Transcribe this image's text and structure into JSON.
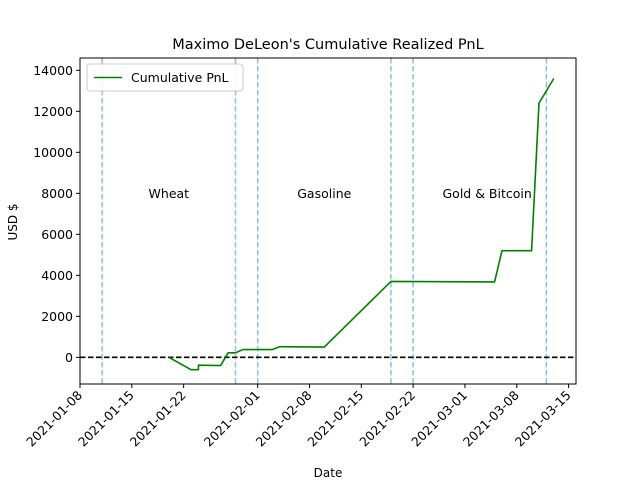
{
  "chart_data": {
    "type": "line",
    "title": "Maximo DeLeon's Cumulative Realized PnL",
    "xlabel": "Date",
    "ylabel": "USD $",
    "xlim": [
      "2021-01-08",
      "2021-03-16"
    ],
    "ylim": [
      -1300,
      14600
    ],
    "x_ticks": [
      "2021-01-08",
      "2021-01-15",
      "2021-01-22",
      "2021-02-01",
      "2021-02-08",
      "2021-02-15",
      "2021-02-22",
      "2021-03-01",
      "2021-03-08",
      "2021-03-15"
    ],
    "y_ticks": [
      0,
      2000,
      4000,
      6000,
      8000,
      10000,
      12000,
      14000
    ],
    "y_tick_labels": [
      "0",
      "2000",
      "4000",
      "6000",
      "8000",
      "10000",
      "12000",
      "14000"
    ],
    "legend": {
      "position": "top-left",
      "entries": [
        "Cumulative PnL"
      ]
    },
    "colors": {
      "series": "#008000",
      "vlines": "#8ec1e0",
      "zero_line": "#000000"
    },
    "grid": false,
    "series": [
      {
        "name": "Cumulative PnL",
        "x": [
          "2021-01-20",
          "2021-01-23",
          "2021-01-24",
          "2021-01-24",
          "2021-01-27",
          "2021-01-28",
          "2021-01-29",
          "2021-01-30",
          "2021-02-01",
          "2021-02-03",
          "2021-02-04",
          "2021-02-10",
          "2021-02-19",
          "2021-03-05",
          "2021-03-06",
          "2021-03-10",
          "2021-03-11",
          "2021-03-13"
        ],
        "y": [
          0,
          -600,
          -600,
          -380,
          -400,
          220,
          220,
          380,
          380,
          380,
          520,
          500,
          3700,
          3680,
          5200,
          5200,
          12400,
          13600
        ]
      }
    ],
    "zero_line": {
      "y": 0,
      "style": "dashed"
    },
    "vertical_lines": [
      "2021-01-11",
      "2021-01-29",
      "2021-02-01",
      "2021-02-19",
      "2021-02-22",
      "2021-03-12"
    ],
    "annotations": [
      {
        "text": "Wheat",
        "x": "2021-01-20",
        "y": 8000
      },
      {
        "text": "Gasoline",
        "x": "2021-02-10",
        "y": 8000
      },
      {
        "text": "Gold & Bitcoin",
        "x": "2021-03-04",
        "y": 8000
      }
    ]
  }
}
